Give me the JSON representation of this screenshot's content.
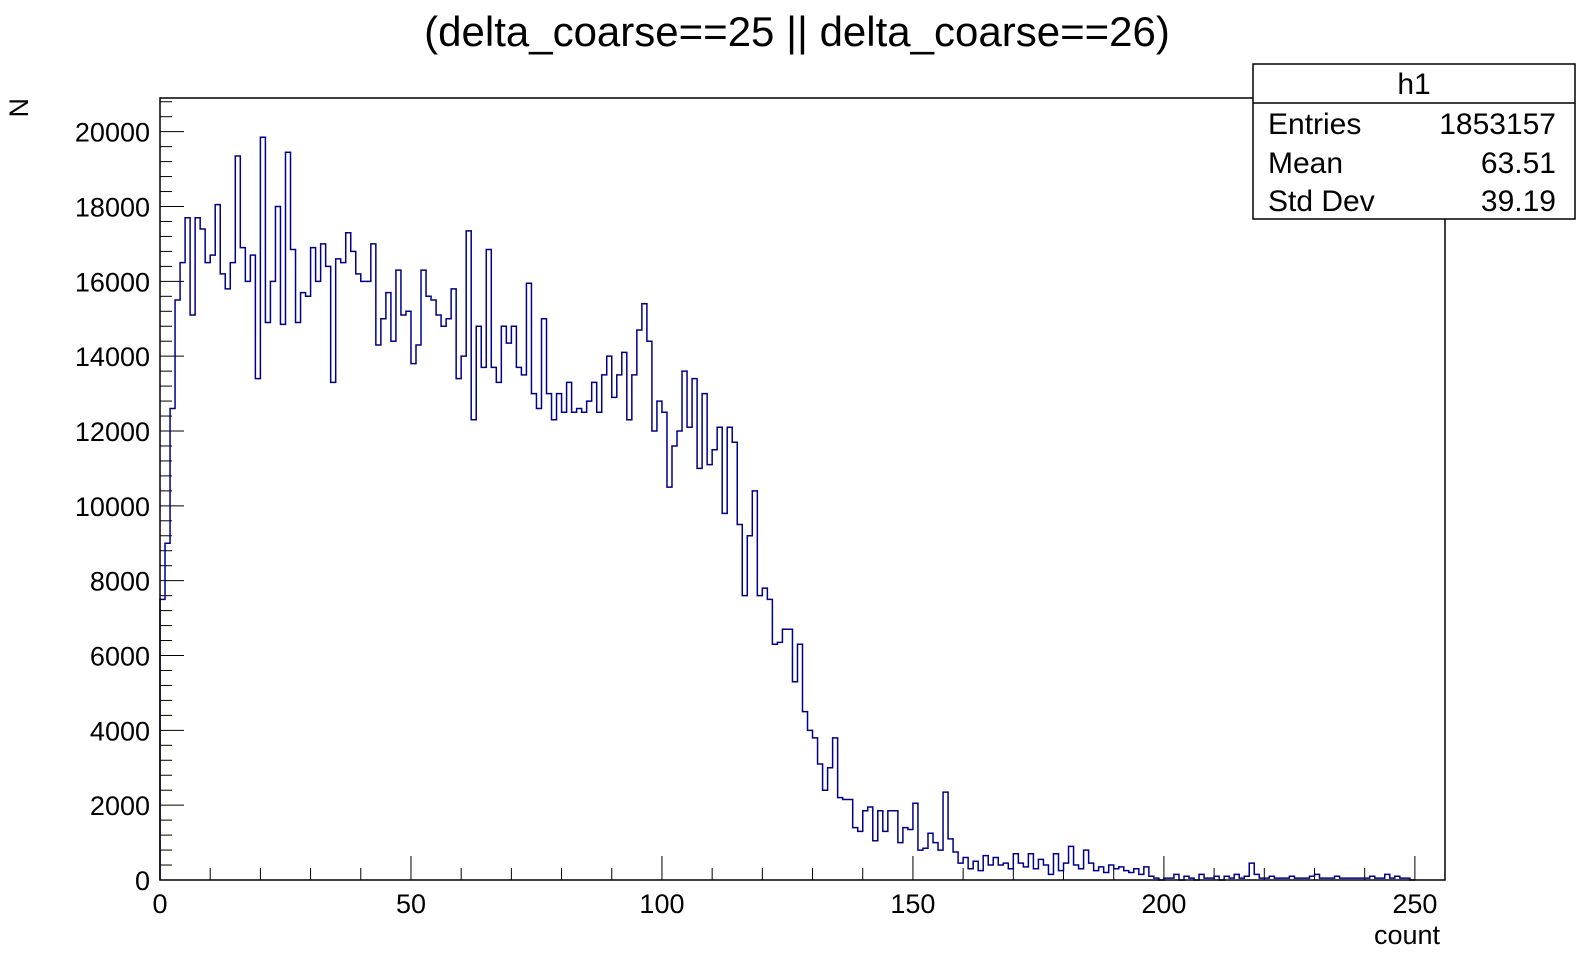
{
  "chart_data": {
    "type": "histogram",
    "title": "(delta_coarse==25 || delta_coarse==26)",
    "xlabel": "count",
    "ylabel": "N",
    "xlim": [
      0,
      256
    ],
    "ylim": [
      0,
      20900
    ],
    "bin_width": 1,
    "x_major_ticks": [
      0,
      50,
      100,
      150,
      200,
      250
    ],
    "x_tick_labels": [
      "0",
      "50",
      "100",
      "150",
      "200",
      "250"
    ],
    "y_major_ticks": [
      0,
      2000,
      4000,
      6000,
      8000,
      10000,
      12000,
      14000,
      16000,
      18000,
      20000
    ],
    "y_tick_labels": [
      "0",
      "2000",
      "4000",
      "6000",
      "8000",
      "10000",
      "12000",
      "14000",
      "16000",
      "18000",
      "20000"
    ],
    "line_color": "#00008b",
    "values": [
      7500,
      9000,
      12600,
      15500,
      16500,
      17700,
      15100,
      17700,
      17400,
      16500,
      16700,
      18050,
      16200,
      15800,
      16500,
      19350,
      16900,
      16000,
      16700,
      13400,
      19850,
      14900,
      16000,
      18000,
      14850,
      19450,
      16850,
      14900,
      15700,
      15600,
      16900,
      16000,
      17000,
      16400,
      13300,
      16600,
      16500,
      17300,
      16800,
      16200,
      16000,
      16000,
      17000,
      14300,
      15000,
      15700,
      14400,
      16300,
      15100,
      15200,
      13800,
      14300,
      16300,
      15600,
      15500,
      15100,
      14800,
      15000,
      15800,
      13400,
      14000,
      17350,
      12300,
      14800,
      13700,
      16850,
      13700,
      13300,
      14800,
      14350,
      14800,
      13700,
      13500,
      15950,
      13000,
      12600,
      15000,
      13000,
      12300,
      13000,
      12500,
      13300,
      12500,
      12600,
      12500,
      12800,
      13300,
      12500,
      13500,
      14000,
      12900,
      13500,
      14100,
      12300,
      13500,
      14700,
      15400,
      14400,
      12000,
      12800,
      12500,
      10500,
      11600,
      12000,
      13600,
      12100,
      13400,
      11000,
      13000,
      11100,
      11500,
      12100,
      9800,
      12100,
      11700,
      9500,
      7600,
      9200,
      10400,
      7600,
      7800,
      7500,
      6300,
      6350,
      6700,
      6700,
      5300,
      6300,
      4500,
      4000,
      3800,
      3100,
      2400,
      3000,
      3800,
      2200,
      2150,
      2150,
      1400,
      1300,
      1850,
      1950,
      1050,
      1850,
      1300,
      1850,
      1850,
      1000,
      1400,
      1350,
      2050,
      800,
      850,
      1250,
      1000,
      800,
      2350,
      1100,
      750,
      450,
      600,
      300,
      500,
      250,
      650,
      400,
      600,
      400,
      450,
      300,
      700,
      450,
      350,
      700,
      300,
      550,
      400,
      150,
      700,
      250,
      450,
      900,
      400,
      300,
      800,
      450,
      250,
      350,
      200,
      400,
      300,
      350,
      250,
      200,
      300,
      150,
      350,
      100,
      50,
      0,
      50,
      50,
      150,
      0,
      100,
      50,
      0,
      150,
      50,
      50,
      100,
      0,
      100,
      50,
      150,
      50,
      100,
      450,
      150,
      50,
      50,
      100,
      50,
      50,
      50,
      100,
      50,
      50,
      50,
      100,
      150,
      50,
      50,
      50,
      100,
      50,
      50,
      50,
      50,
      50,
      50,
      100,
      50,
      50,
      150,
      50,
      100,
      50,
      50,
      0
    ]
  },
  "stats_box": {
    "title": "h1",
    "rows": [
      {
        "label": "Entries",
        "value": "1853157"
      },
      {
        "label": "Mean",
        "value": "63.51"
      },
      {
        "label": "Std Dev",
        "value": "39.19"
      }
    ]
  }
}
